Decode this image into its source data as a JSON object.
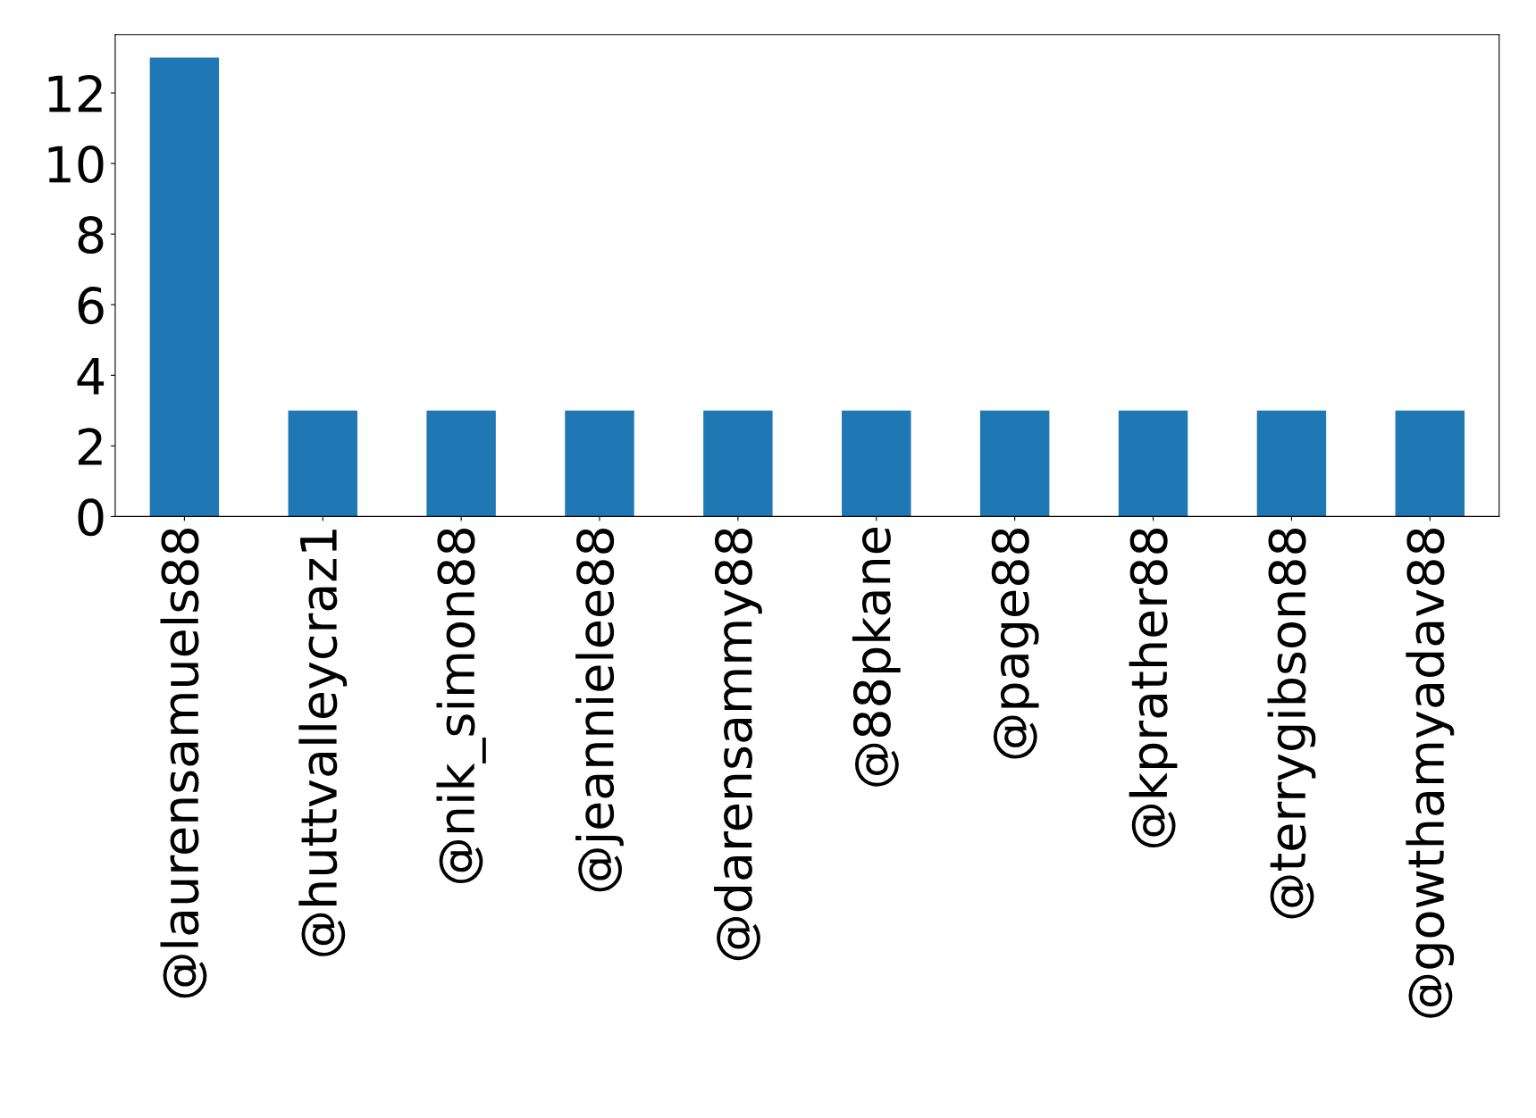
{
  "chart_data": {
    "type": "bar",
    "categories": [
      "@laurensamuels88",
      "@huttvalleycraz1",
      "@nik_simon88",
      "@jeannielee88",
      "@darensammy88",
      "@88pkane",
      "@page88",
      "@kprather88",
      "@terrygibson88",
      "@gowthamyadav88"
    ],
    "values": [
      13,
      3,
      3,
      3,
      3,
      3,
      3,
      3,
      3,
      3
    ],
    "color": "#1f77b4",
    "ylim": [
      0,
      13.65
    ],
    "yticks": [
      0,
      2,
      4,
      6,
      8,
      10,
      12
    ],
    "grid": false,
    "legend": false
  }
}
